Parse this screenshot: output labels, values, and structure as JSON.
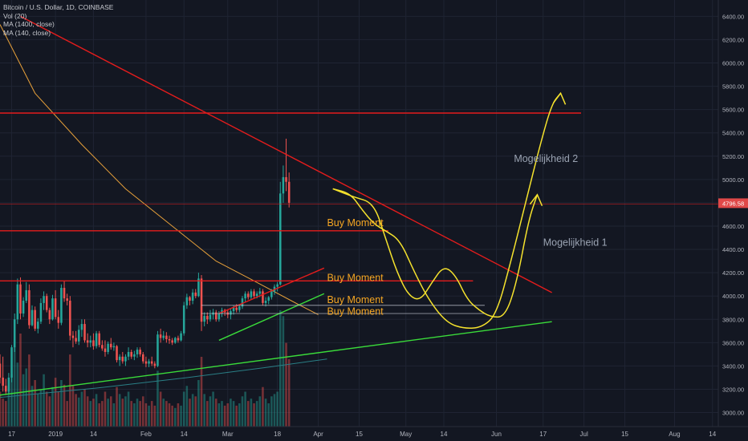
{
  "chart_data": {
    "type": "candlestick",
    "title": "Bitcoin / U.S. Dollar, 1D, COINBASE",
    "indicators": [
      "Vol (20)",
      "MA (1400, close)",
      "MA (140, close)"
    ],
    "ylim": [
      2880,
      6540
    ],
    "y_ticks": [
      6400,
      6200,
      6000,
      5800,
      5600,
      5400,
      5200,
      5000,
      4800,
      4600,
      4400,
      4200,
      4000,
      3800,
      3600,
      3400,
      3200,
      3000
    ],
    "y_tick_labels": [
      "6400.00",
      "6200.00",
      "6000.00",
      "5800.00",
      "5600.00",
      "5400.00",
      "5200.00",
      "5000.00",
      "4800.00",
      "4600.00",
      "4400.00",
      "4200.00",
      "4000.00",
      "3800.00",
      "3600.00",
      "3400.00",
      "3200.00",
      "3000.00"
    ],
    "x_range": [
      "2018-12-13",
      "2019-08-16"
    ],
    "x_ticks": [
      {
        "date": "2018-12-17",
        "label": "17"
      },
      {
        "date": "2019-01-01",
        "label": "2019"
      },
      {
        "date": "2019-01-14",
        "label": "14"
      },
      {
        "date": "2019-02-01",
        "label": "Feb"
      },
      {
        "date": "2019-02-14",
        "label": "14"
      },
      {
        "date": "2019-03-01",
        "label": "Mar"
      },
      {
        "date": "2019-03-18",
        "label": "18"
      },
      {
        "date": "2019-04-01",
        "label": "Apr"
      },
      {
        "date": "2019-04-15",
        "label": "15"
      },
      {
        "date": "2019-05-01",
        "label": "May"
      },
      {
        "date": "2019-05-14",
        "label": "14"
      },
      {
        "date": "2019-06-01",
        "label": "Jun"
      },
      {
        "date": "2019-06-17",
        "label": "17"
      },
      {
        "date": "2019-07-01",
        "label": "Jul"
      },
      {
        "date": "2019-07-15",
        "label": "15"
      },
      {
        "date": "2019-08-01",
        "label": "Aug"
      },
      {
        "date": "2019-08-14",
        "label": "14"
      }
    ],
    "last_price": 4796.58,
    "last_price_label": "4796.58",
    "candles_start_date": "2018-12-13",
    "ohlc": [
      [
        3420,
        3500,
        3250,
        3300
      ],
      [
        3300,
        3480,
        3180,
        3230
      ],
      [
        3230,
        3290,
        3150,
        3180
      ],
      [
        3180,
        3340,
        3160,
        3300
      ],
      [
        3300,
        3580,
        3260,
        3560
      ],
      [
        3560,
        3850,
        3520,
        3800
      ],
      [
        3800,
        4150,
        3760,
        4100
      ],
      [
        4100,
        4160,
        3800,
        3850
      ],
      [
        3850,
        3990,
        3820,
        3960
      ],
      [
        3960,
        4120,
        3940,
        4050
      ],
      [
        4050,
        4100,
        3720,
        3750
      ],
      [
        3750,
        3920,
        3740,
        3880
      ],
      [
        3880,
        3910,
        3700,
        3720
      ],
      [
        3720,
        3810,
        3680,
        3780
      ],
      [
        3780,
        3980,
        3760,
        3940
      ],
      [
        3940,
        4040,
        3880,
        4000
      ],
      [
        4000,
        4020,
        3860,
        3880
      ],
      [
        3880,
        3900,
        3760,
        3800
      ],
      [
        3800,
        4010,
        3790,
        3980
      ],
      [
        3980,
        4050,
        3800,
        3820
      ],
      [
        3820,
        3880,
        3720,
        3770
      ],
      [
        3770,
        4100,
        3750,
        4070
      ],
      [
        4070,
        4130,
        3950,
        3980
      ],
      [
        3980,
        4020,
        3920,
        3960
      ],
      [
        3960,
        4000,
        3620,
        3660
      ],
      [
        3660,
        3700,
        3560,
        3640
      ],
      [
        3640,
        3700,
        3590,
        3610
      ],
      [
        3610,
        3750,
        3580,
        3710
      ],
      [
        3710,
        3800,
        3650,
        3760
      ],
      [
        3760,
        3800,
        3600,
        3620
      ],
      [
        3620,
        3680,
        3560,
        3600
      ],
      [
        3600,
        3660,
        3560,
        3620
      ],
      [
        3620,
        3680,
        3540,
        3570
      ],
      [
        3570,
        3700,
        3550,
        3680
      ],
      [
        3680,
        3700,
        3560,
        3580
      ],
      [
        3580,
        3620,
        3530,
        3550
      ],
      [
        3550,
        3620,
        3480,
        3520
      ],
      [
        3520,
        3610,
        3500,
        3590
      ],
      [
        3590,
        3640,
        3540,
        3560
      ],
      [
        3560,
        3600,
        3530,
        3570
      ],
      [
        3570,
        3580,
        3430,
        3450
      ],
      [
        3450,
        3500,
        3400,
        3480
      ],
      [
        3480,
        3520,
        3420,
        3440
      ],
      [
        3440,
        3500,
        3400,
        3480
      ],
      [
        3480,
        3560,
        3450,
        3520
      ],
      [
        3520,
        3540,
        3460,
        3480
      ],
      [
        3480,
        3530,
        3450,
        3500
      ],
      [
        3500,
        3560,
        3470,
        3540
      ],
      [
        3540,
        3560,
        3480,
        3500
      ],
      [
        3500,
        3520,
        3420,
        3440
      ],
      [
        3440,
        3480,
        3390,
        3420
      ],
      [
        3420,
        3460,
        3390,
        3440
      ],
      [
        3440,
        3480,
        3400,
        3420
      ],
      [
        3420,
        3440,
        3380,
        3400
      ],
      [
        3400,
        3700,
        3390,
        3670
      ],
      [
        3670,
        3720,
        3600,
        3640
      ],
      [
        3640,
        3700,
        3620,
        3660
      ],
      [
        3660,
        3690,
        3600,
        3630
      ],
      [
        3630,
        3660,
        3590,
        3620
      ],
      [
        3620,
        3640,
        3580,
        3600
      ],
      [
        3600,
        3650,
        3590,
        3640
      ],
      [
        3640,
        3660,
        3600,
        3620
      ],
      [
        3620,
        3700,
        3610,
        3680
      ],
      [
        3680,
        3950,
        3660,
        3920
      ],
      [
        3920,
        4020,
        3890,
        3990
      ],
      [
        3990,
        4000,
        3920,
        3960
      ],
      [
        3960,
        4060,
        3930,
        4030
      ],
      [
        4030,
        4060,
        3980,
        4000
      ],
      [
        4000,
        4200,
        3990,
        4150
      ],
      [
        4150,
        4180,
        3700,
        3780
      ],
      [
        3780,
        3860,
        3740,
        3830
      ],
      [
        3830,
        3860,
        3760,
        3800
      ],
      [
        3800,
        3880,
        3780,
        3840
      ],
      [
        3840,
        3890,
        3800,
        3860
      ],
      [
        3860,
        3880,
        3780,
        3800
      ],
      [
        3800,
        3870,
        3780,
        3850
      ],
      [
        3850,
        3900,
        3820,
        3880
      ],
      [
        3880,
        3890,
        3830,
        3860
      ],
      [
        3860,
        3880,
        3810,
        3840
      ],
      [
        3840,
        3890,
        3800,
        3870
      ],
      [
        3870,
        3920,
        3840,
        3900
      ],
      [
        3900,
        3930,
        3860,
        3880
      ],
      [
        3880,
        3920,
        3860,
        3910
      ],
      [
        3910,
        4000,
        3890,
        3980
      ],
      [
        3980,
        4040,
        3950,
        4020
      ],
      [
        4020,
        4040,
        3970,
        3990
      ],
      [
        3990,
        4060,
        3970,
        4040
      ],
      [
        4040,
        4060,
        3980,
        4000
      ],
      [
        4000,
        4040,
        3980,
        4020
      ],
      [
        4020,
        4070,
        3990,
        4040
      ],
      [
        4040,
        4060,
        3920,
        3940
      ],
      [
        3940,
        3990,
        3910,
        3960
      ],
      [
        3960,
        4000,
        3930,
        3990
      ],
      [
        3990,
        4060,
        3970,
        4040
      ],
      [
        4040,
        4100,
        4010,
        4080
      ],
      [
        4080,
        4120,
        4040,
        4100
      ],
      [
        4100,
        4980,
        4090,
        4880
      ],
      [
        4880,
        5120,
        4800,
        5020
      ],
      [
        5020,
        5350,
        4900,
        4980
      ],
      [
        4980,
        5060,
        4760,
        4800
      ]
    ],
    "volume_max": 1,
    "volume": [
      0.3,
      0.24,
      0.22,
      0.4,
      0.45,
      0.75,
      0.55,
      0.8,
      0.45,
      0.5,
      0.62,
      0.35,
      0.4,
      0.28,
      0.32,
      0.45,
      0.3,
      0.26,
      0.34,
      0.42,
      0.3,
      0.4,
      0.36,
      0.22,
      0.62,
      0.35,
      0.28,
      0.25,
      0.3,
      0.32,
      0.26,
      0.22,
      0.24,
      0.28,
      0.2,
      0.22,
      0.3,
      0.24,
      0.26,
      0.2,
      0.34,
      0.28,
      0.24,
      0.26,
      0.3,
      0.22,
      0.2,
      0.24,
      0.22,
      0.26,
      0.2,
      0.18,
      0.22,
      0.18,
      0.48,
      0.3,
      0.24,
      0.22,
      0.2,
      0.18,
      0.16,
      0.2,
      0.18,
      0.3,
      0.35,
      0.24,
      0.28,
      0.26,
      0.4,
      0.6,
      0.28,
      0.22,
      0.26,
      0.3,
      0.24,
      0.2,
      0.22,
      0.18,
      0.2,
      0.24,
      0.22,
      0.18,
      0.2,
      0.26,
      0.3,
      0.22,
      0.24,
      0.2,
      0.22,
      0.26,
      0.34,
      0.24,
      0.2,
      0.26,
      0.28,
      0.3,
      1.0,
      0.95,
      0.72,
      0.58
    ],
    "moving_averages": [
      {
        "name": "MA (140, close)",
        "color": "#e59f3a",
        "points": [
          [
            "2018-12-13",
            6330
          ],
          [
            "2018-12-25",
            5740
          ],
          [
            "2019-01-10",
            5300
          ],
          [
            "2019-01-25",
            4920
          ],
          [
            "2019-02-10",
            4600
          ],
          [
            "2019-02-25",
            4300
          ],
          [
            "2019-03-10",
            4130
          ],
          [
            "2019-03-25",
            3930
          ],
          [
            "2019-04-01",
            3840
          ]
        ]
      },
      {
        "name": "MA (1400, close)",
        "color": "#2a7f86",
        "points": [
          [
            "2018-12-13",
            3130
          ],
          [
            "2019-01-15",
            3210
          ],
          [
            "2019-02-15",
            3300
          ],
          [
            "2019-03-15",
            3390
          ],
          [
            "2019-04-04",
            3460
          ]
        ]
      }
    ],
    "drawings": {
      "red_horizontal_lines": [
        5570,
        4790,
        4560,
        4130
      ],
      "red_descending_trendline": [
        [
          "2018-12-20",
          6400
        ],
        [
          "2019-06-20",
          4030
        ]
      ],
      "red_channel_top": [
        [
          "2019-02-26",
          3850
        ],
        [
          "2019-04-03",
          4240
        ]
      ],
      "green_long_trendline": [
        [
          "2018-12-13",
          3150
        ],
        [
          "2019-06-20",
          3780
        ]
      ],
      "green_channel_bottom": [
        [
          "2019-02-26",
          3620
        ],
        [
          "2019-04-03",
          4020
        ]
      ],
      "white_box_lines": [
        3920,
        3850
      ],
      "white_box_range": [
        "2019-02-20",
        "2019-05-28"
      ]
    },
    "annotations": [
      {
        "text": "Buy Moment",
        "date": "2019-04-04",
        "price": 4600,
        "color": "#f5a623"
      },
      {
        "text": "Buy Moment",
        "date": "2019-04-04",
        "price": 4130,
        "color": "#f5a623"
      },
      {
        "text": "Buy Moment",
        "date": "2019-04-04",
        "price": 3940,
        "color": "#f5a623"
      },
      {
        "text": "Buy Moment",
        "date": "2019-04-04",
        "price": 3840,
        "color": "#f5a623"
      },
      {
        "text": "Mogelijkheid 1",
        "date": "2019-06-17",
        "price": 4430,
        "color": "#9aa3b2"
      },
      {
        "text": "Mogelijkheid 2",
        "date": "2019-06-07",
        "price": 5150,
        "color": "#9aa3b2"
      }
    ],
    "projection_paths": {
      "path_to_mogelijkheid_1": [
        [
          "2019-04-06",
          4920
        ],
        [
          "2019-04-13",
          4850
        ],
        [
          "2019-04-20",
          4800
        ],
        [
          "2019-04-24",
          4500
        ],
        [
          "2019-04-28",
          4200
        ],
        [
          "2019-05-02",
          4000
        ],
        [
          "2019-05-06",
          3960
        ],
        [
          "2019-05-10",
          4120
        ],
        [
          "2019-05-14",
          4260
        ],
        [
          "2019-05-18",
          4180
        ],
        [
          "2019-05-22",
          3970
        ],
        [
          "2019-05-26",
          3880
        ],
        [
          "2019-05-30",
          3820
        ],
        [
          "2019-06-04",
          3820
        ],
        [
          "2019-06-08",
          4120
        ],
        [
          "2019-06-12",
          4650
        ],
        [
          "2019-06-15",
          4870
        ]
      ],
      "path_to_mogelijkheid_2": [
        [
          "2019-04-06",
          4920
        ],
        [
          "2019-04-12",
          4880
        ],
        [
          "2019-04-16",
          4740
        ],
        [
          "2019-04-20",
          4620
        ],
        [
          "2019-04-24",
          4560
        ],
        [
          "2019-04-29",
          4480
        ],
        [
          "2019-05-04",
          4200
        ],
        [
          "2019-05-09",
          3960
        ],
        [
          "2019-05-15",
          3770
        ],
        [
          "2019-05-21",
          3720
        ],
        [
          "2019-05-27",
          3730
        ],
        [
          "2019-06-01",
          3840
        ],
        [
          "2019-06-06",
          4300
        ],
        [
          "2019-06-11",
          4800
        ],
        [
          "2019-06-16",
          5300
        ],
        [
          "2019-06-20",
          5650
        ],
        [
          "2019-06-23",
          5740
        ]
      ]
    },
    "colors": {
      "background": "#131722",
      "grid": "#1f2433",
      "up": "#26a69a",
      "down": "#ef5350",
      "red_line": "#e41c1c",
      "green_line": "#3adb3a",
      "yellow": "#f5e22d",
      "axis_text": "#b2b5be",
      "price_tag": "#e04848"
    }
  }
}
